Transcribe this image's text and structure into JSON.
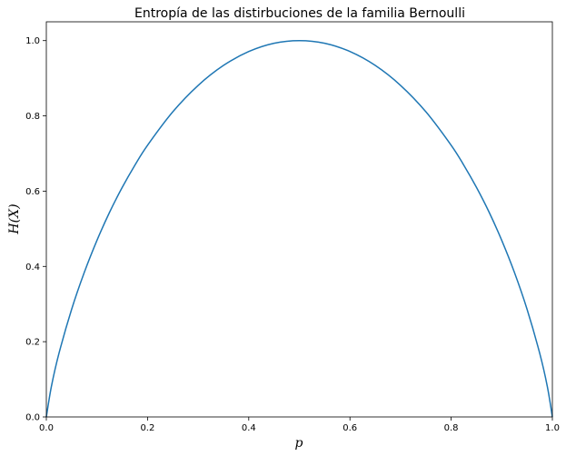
{
  "chart_data": {
    "type": "line",
    "title": "Entropía de las distirbuciones de la familia Bernoulli",
    "xlabel": "p",
    "ylabel": "H(X)",
    "xlim": [
      0,
      1
    ],
    "ylim": [
      0,
      1.05
    ],
    "xticks": [
      0.0,
      0.2,
      0.4,
      0.6,
      0.8,
      1.0
    ],
    "xtick_labels": [
      "0.0",
      "0.2",
      "0.4",
      "0.6",
      "0.8",
      "1.0"
    ],
    "yticks": [
      0.0,
      0.2,
      0.4,
      0.6,
      0.8,
      1.0
    ],
    "ytick_labels": [
      "0.0",
      "0.2",
      "0.4",
      "0.6",
      "0.8",
      "1.0"
    ],
    "grid": false,
    "series": [
      {
        "color": "#1f77b4",
        "x": [
          0.0,
          0.01,
          0.025,
          0.05,
          0.075,
          0.1,
          0.125,
          0.15,
          0.175,
          0.2,
          0.25,
          0.3,
          0.35,
          0.4,
          0.45,
          0.5,
          0.55,
          0.6,
          0.65,
          0.7,
          0.75,
          0.8,
          0.825,
          0.85,
          0.875,
          0.9,
          0.925,
          0.95,
          0.975,
          0.99,
          1.0
        ],
        "y": [
          0.0,
          0.081,
          0.169,
          0.286,
          0.384,
          0.469,
          0.544,
          0.61,
          0.669,
          0.722,
          0.811,
          0.881,
          0.934,
          0.971,
          0.993,
          1.0,
          0.993,
          0.971,
          0.934,
          0.881,
          0.811,
          0.722,
          0.669,
          0.61,
          0.544,
          0.469,
          0.384,
          0.286,
          0.169,
          0.081,
          0.0
        ]
      }
    ]
  }
}
